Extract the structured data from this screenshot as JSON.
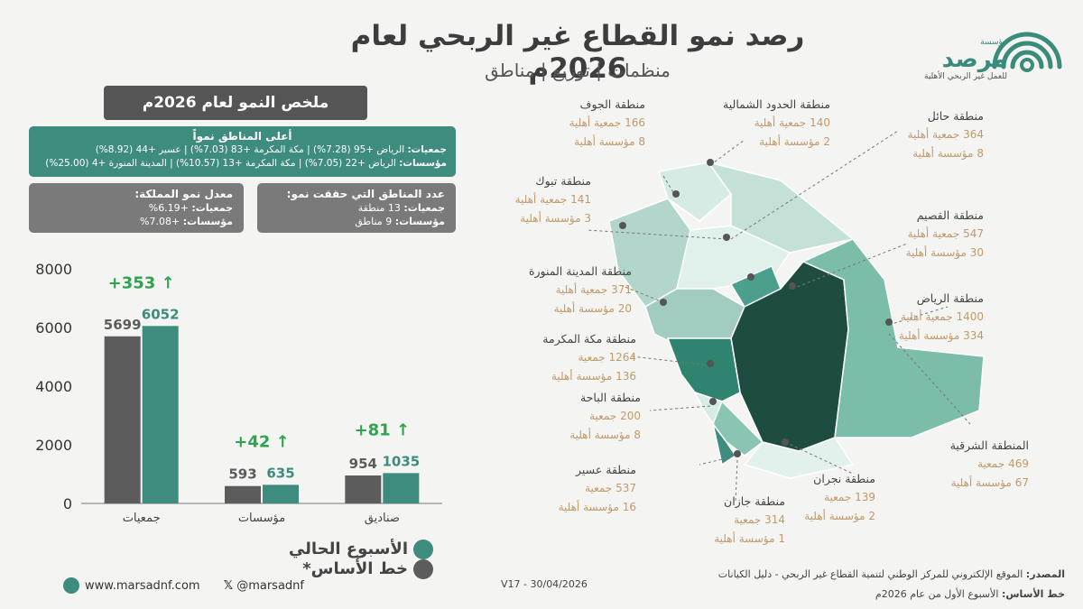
{
  "header": {
    "title": "رصد نمو القطاع غير الربحي لعام 2026م",
    "subtitle": "منظمات | توزيع | مناطق"
  },
  "logo": {
    "small": "مؤسسة",
    "name": "مرصد",
    "tagline": "للعمل غير الربحي الأهلية"
  },
  "summary": {
    "title": "ملخص النمو لعام 2026م",
    "top_regions_title": "أعلى المناطق نمواً",
    "top_associations_label": "جمعيات:",
    "top_associations": "الرياض +95 (7.28%) | مكة المكرمة +83 (7.03%) | عسير +44 (8.92%)",
    "top_institutions_label": "مؤسسات:",
    "top_institutions": "الرياض +22 (7.05%) | مكة المكرمة +13 (10.57%) | المدينة المنورة +4 (25.00%)",
    "growth_rate_title": "معدل نمو المملكة:",
    "growth_assoc_label": "جمعيات:",
    "growth_assoc": "+6.19%",
    "growth_inst_label": "مؤسسات:",
    "growth_inst": "+7.08%",
    "regions_count_title": "عدد المناطق التي حققت نمو:",
    "regions_assoc_label": "جمعيات:",
    "regions_assoc": "13 منطقة",
    "regions_inst_label": "مؤسسات:",
    "regions_inst": "9 مناطق"
  },
  "chart_data": {
    "type": "bar",
    "categories": [
      "جمعيات",
      "مؤسسات",
      "صناديق"
    ],
    "series": [
      {
        "name": "خط الأساس*",
        "values": [
          5699,
          593,
          954
        ],
        "color": "#5c5c5c"
      },
      {
        "name": "الأسبوع الحالي",
        "values": [
          6052,
          635,
          1035
        ],
        "color": "#3d8c7d"
      }
    ],
    "deltas": [
      "+353 ↑",
      "+42 ↑",
      "+81 ↑"
    ],
    "yticks": [
      "0",
      "2000",
      "4000",
      "6000",
      "8000"
    ],
    "ylim": [
      0,
      8000
    ],
    "grid": false
  },
  "legend": {
    "current": "الأسبوع الحالي",
    "baseline": "خط الأساس*"
  },
  "regions": [
    {
      "name": "منطقة الجوف",
      "l1": "166 جمعية أهلية",
      "l2": "8 مؤسسة أهلية"
    },
    {
      "name": "منطقة الحدود الشمالية",
      "l1": "140 جمعية أهلية",
      "l2": "2 مؤسسة أهلية"
    },
    {
      "name": "منطقة حائل",
      "l1": "364 جمعية أهلية",
      "l2": "8 مؤسسة أهلية"
    },
    {
      "name": "منطقة تبوك",
      "l1": "141 جمعية أهلية",
      "l2": "3 مؤسسة أهلية"
    },
    {
      "name": "منطقة القصيم",
      "l1": "547 جمعية أهلية",
      "l2": "30 مؤسسة أهلية"
    },
    {
      "name": "منطقة المدينة المنورة",
      "l1": "371 جمعية أهلية",
      "l2": "20 مؤسسة أهلية"
    },
    {
      "name": "منطقة الرياض",
      "l1": "1400 جمعية أهلية",
      "l2": "334 مؤسسة أهلية"
    },
    {
      "name": "منطقة مكة المكرمة",
      "l1": "1264 جمعية",
      "l2": "136 مؤسسة أهلية"
    },
    {
      "name": "منطقة الباحة",
      "l1": "200 جمعية",
      "l2": "8 مؤسسة أهلية"
    },
    {
      "name": "المنطقة الشرقية",
      "l1": "469 جمعية",
      "l2": "67 مؤسسة أهلية"
    },
    {
      "name": "منطقة عسير",
      "l1": "537 جمعية",
      "l2": "16 مؤسسة أهلية"
    },
    {
      "name": "منطقة نجران",
      "l1": "139 جمعية",
      "l2": "2 مؤسسة أهلية"
    },
    {
      "name": "منطقة جازان",
      "l1": "314 جمعية",
      "l2": "1 مؤسسة أهلية"
    }
  ],
  "footer": {
    "website": "www.marsadnf.com",
    "handle": "@marsadnf",
    "version": "V17  -  30/04/2026",
    "source_label": "المصدر:",
    "source": "الموقع الإلكتروني للمركز الوطني لتنمية القطاع غير الربحي - دليل الكيانات",
    "baseline_label": "خط الأساس:",
    "baseline": "الأسبوع الأول من عام 2026م"
  }
}
